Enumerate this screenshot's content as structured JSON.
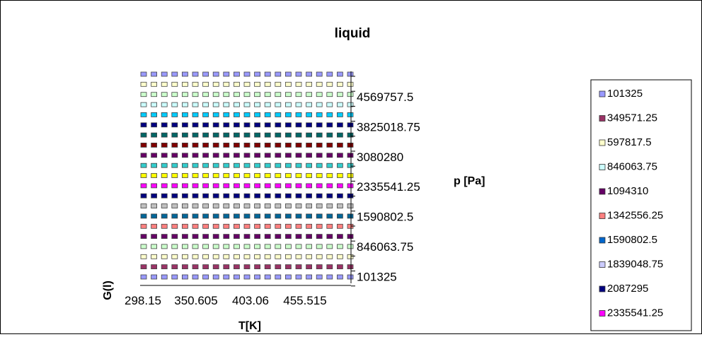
{
  "chart_data": {
    "type": "3d-column",
    "title": "liquid",
    "xlabel": "T[K]",
    "ylabel": "G(l)",
    "zlabel": "p [Pa]",
    "x_ticks": [
      "298.15",
      "350.605",
      "403.06",
      "455.515"
    ],
    "depth_ticks": [
      "4569757.5",
      "3825018.75",
      "3080280",
      "2335541.25",
      "1590802.5",
      "846063.75",
      "101325"
    ],
    "legend_position": "right",
    "legend": [
      {
        "name": "101325",
        "color": "#9999ff"
      },
      {
        "name": "349571.25",
        "color": "#993366"
      },
      {
        "name": "597817.5",
        "color": "#ffffcc"
      },
      {
        "name": "846063.75",
        "color": "#ccffff"
      },
      {
        "name": "1094310",
        "color": "#660066"
      },
      {
        "name": "1342556.25",
        "color": "#ff8080"
      },
      {
        "name": "1590802.5",
        "color": "#0066cc"
      },
      {
        "name": "1839048.75",
        "color": "#ccccff"
      },
      {
        "name": "2087295",
        "color": "#000080"
      },
      {
        "name": "2335541.25",
        "color": "#ff00ff"
      }
    ],
    "row_colors": [
      "#9999ff",
      "#ffffcc",
      "#ccffcc",
      "#ccffff",
      "#00ccff",
      "#000080",
      "#006666",
      "#800000",
      "#660066",
      "#33cccc",
      "#ffff00",
      "#ff00ff",
      "#000080",
      "#c0c0c0",
      "#006699",
      "#ff8080",
      "#660066",
      "#ccffcc",
      "#ffffcc",
      "#993366",
      "#9999ff"
    ],
    "columns_per_row": 21
  }
}
